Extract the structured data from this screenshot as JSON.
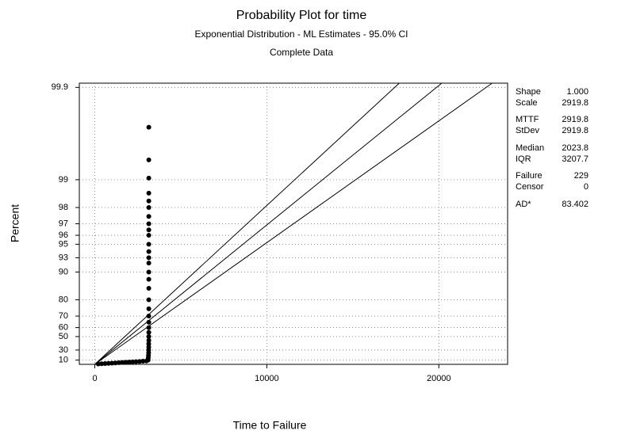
{
  "chart_data": {
    "type": "scatter",
    "title": "Probability Plot for time",
    "subtitle": "Exponential Distribution - ML Estimates - 95.0% CI",
    "note": "Complete Data",
    "x_label": "Time to Failure",
    "y_label": "Percent",
    "y_scale": "exponential-probability",
    "grid": true,
    "color": "#000000",
    "xlim": [
      -900,
      24000
    ],
    "xticks": [
      0,
      10000,
      20000
    ],
    "ylim": [
      0,
      99.91
    ],
    "yticks": [
      10,
      30,
      50,
      60,
      70,
      80,
      90,
      93,
      95,
      96,
      97,
      98,
      99,
      99.9
    ],
    "x": [
      200,
      400,
      600,
      800,
      1000,
      1200,
      1400,
      1600,
      1800,
      2000,
      2200,
      2400,
      2600,
      2800,
      3000,
      3100,
      3110,
      3120,
      3130,
      3130,
      3135,
      3135,
      3140,
      3140,
      3140,
      3140,
      3140,
      3140,
      3140,
      3140,
      3140,
      3140,
      3140,
      3140,
      3140,
      3140,
      3140,
      3140,
      3140,
      3140,
      3140,
      3140,
      3140,
      3140,
      3140,
      3140,
      3140
    ],
    "values": [
      1,
      1.5,
      2,
      2.5,
      3,
      3.5,
      4,
      4.5,
      5,
      5.5,
      6,
      6.5,
      7,
      7.5,
      8,
      10,
      15,
      20,
      25,
      30,
      35,
      40,
      45,
      50,
      55,
      60,
      65,
      70,
      75,
      80,
      85,
      88,
      90,
      92,
      93,
      94,
      95,
      96,
      96.5,
      97,
      97.5,
      98,
      98.3,
      98.6,
      99.04,
      99.39,
      99.73
    ],
    "fit_lines": [
      {
        "x": [
          0,
          17700
        ],
        "values": [
          0,
          99.91
        ]
      },
      {
        "x": [
          0,
          20170
        ],
        "values": [
          0,
          99.91
        ]
      },
      {
        "x": [
          0,
          23100
        ],
        "values": [
          0,
          99.91
        ]
      }
    ],
    "stats": [
      {
        "label": "Shape",
        "value": "1.000"
      },
      {
        "label": "Scale",
        "value": "2919.8"
      },
      {
        "label": "MTTF",
        "value": "2919.8"
      },
      {
        "label": "StDev",
        "value": "2919.8"
      },
      {
        "label": "Median",
        "value": "2023.8"
      },
      {
        "label": "IQR",
        "value": "3207.7"
      },
      {
        "label": "Failure",
        "value": "229"
      },
      {
        "label": "Censor",
        "value": "0"
      },
      {
        "label": "AD*",
        "value": "83.402"
      }
    ]
  }
}
